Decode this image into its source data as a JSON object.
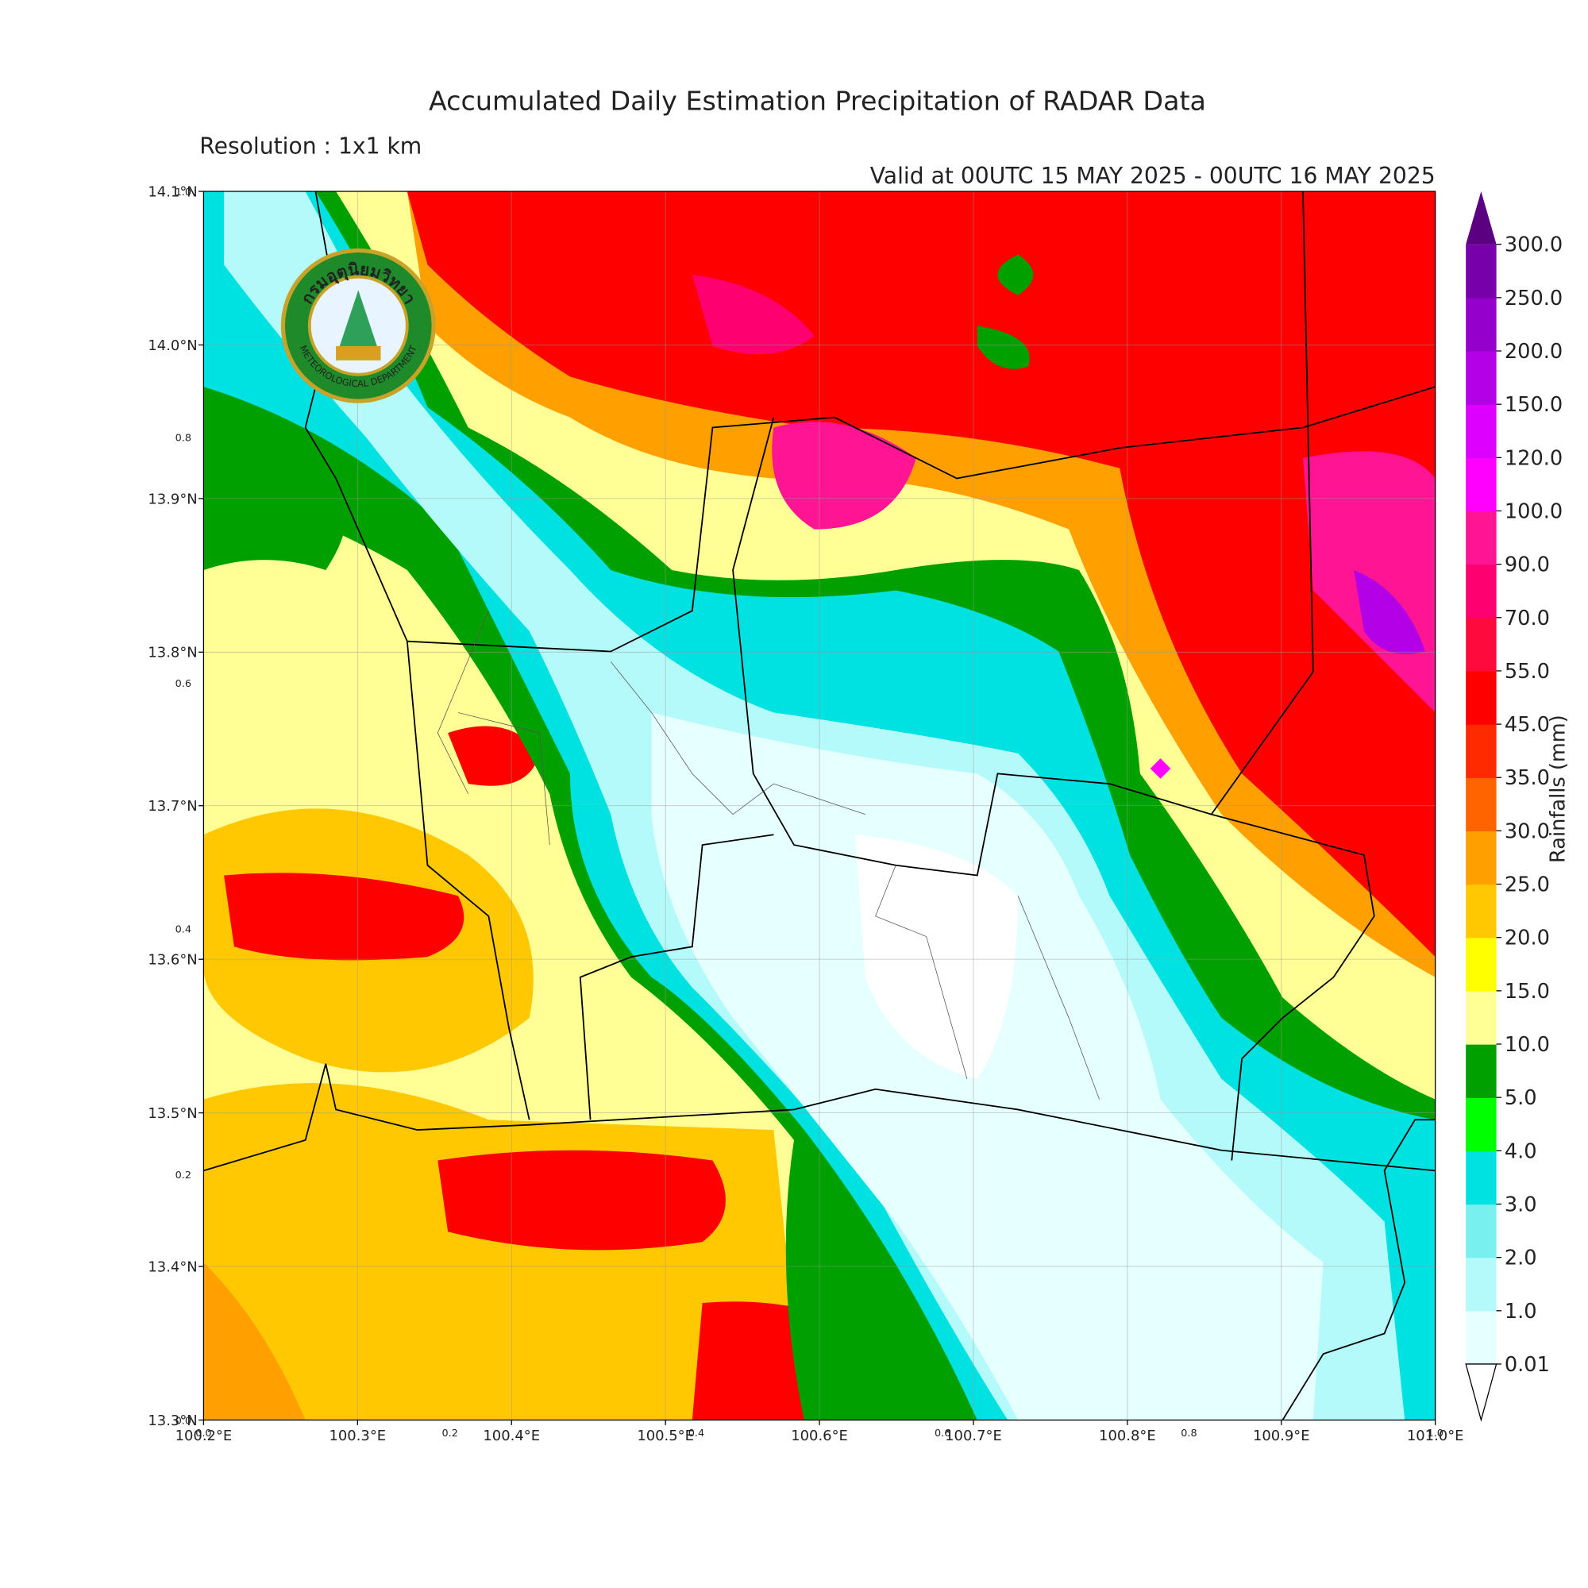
{
  "header": {
    "title": "Accumulated Daily Estimation Precipitation of RADAR Data",
    "resolution": "Resolution : 1x1 km",
    "valid": "Valid at 00UTC 15 MAY 2025 - 00UTC 16 MAY 2025"
  },
  "map": {
    "lon_ticks": [
      "100.2°E",
      "100.3°E",
      "100.4°E",
      "100.5°E",
      "100.6°E",
      "100.7°E",
      "100.8°E",
      "100.9°E",
      "101.0°E"
    ],
    "lat_ticks": [
      "13.3°N",
      "13.4°N",
      "13.5°N",
      "13.6°N",
      "13.7°N",
      "13.8°N",
      "13.9°N",
      "14.0°N",
      "14.1°N"
    ],
    "inner_ticks": [
      "0.0",
      "0.2",
      "0.4",
      "0.6",
      "0.8",
      "1.0"
    ],
    "logo_thai": "กรมอุตุนิยมวิทยา",
    "logo_english": "METEOROLOGICAL DEPARTMENT"
  },
  "colorbar": {
    "label": "Rainfalls (mm)",
    "levels": [
      "0.01",
      "1.0",
      "2.0",
      "3.0",
      "4.0",
      "5.0",
      "10.0",
      "15.0",
      "20.0",
      "25.0",
      "30.0",
      "35.0",
      "45.0",
      "55.0",
      "70.0",
      "90.0",
      "100.0",
      "120.0",
      "150.0",
      "200.0",
      "250.0",
      "300.0"
    ],
    "colors": [
      "#e6ffff",
      "#b4fafa",
      "#78f0f0",
      "#00e1e1",
      "#00ff00",
      "#00a000",
      "#ffff96",
      "#ffff00",
      "#ffc800",
      "#ffa000",
      "#ff6400",
      "#ff2a00",
      "#ff0000",
      "#ff0a3c",
      "#ff0070",
      "#ff1493",
      "#ff00ff",
      "#dd00ff",
      "#b400e6",
      "#9600cd",
      "#7800aa"
    ],
    "over_color": "#5a0080"
  }
}
